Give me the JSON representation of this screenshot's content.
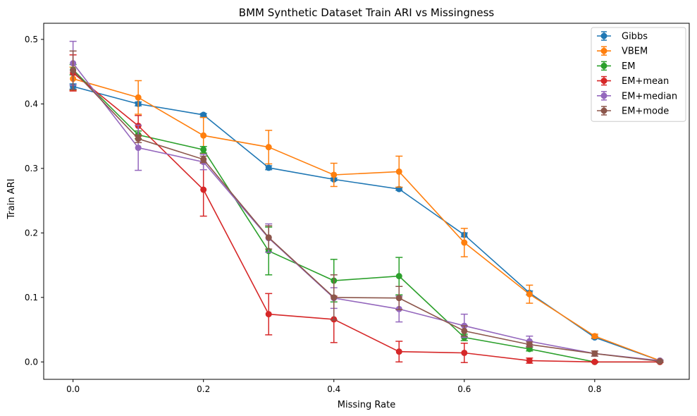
{
  "chart_data": {
    "type": "line",
    "title": "BMM Synthetic Dataset Train ARI vs Missingness",
    "xlabel": "Missing Rate",
    "ylabel": "Train ARI",
    "xlim": [
      -0.045,
      0.945
    ],
    "ylim": [
      -0.027,
      0.525
    ],
    "xticks": [
      0.0,
      0.2,
      0.4,
      0.6,
      0.8
    ],
    "xtick_labels": [
      "0.0",
      "0.2",
      "0.4",
      "0.6",
      "0.8"
    ],
    "yticks": [
      0.0,
      0.1,
      0.2,
      0.3,
      0.4,
      0.5
    ],
    "ytick_labels": [
      "0.0",
      "0.1",
      "0.2",
      "0.3",
      "0.4",
      "0.5"
    ],
    "grid": false,
    "legend_position": "top-right",
    "x": [
      0.0,
      0.1,
      0.2,
      0.3,
      0.4,
      0.5,
      0.6,
      0.7,
      0.8,
      0.9
    ],
    "series": [
      {
        "name": "Gibbs",
        "color": "#1f77b4",
        "values": [
          0.427,
          0.4,
          0.383,
          0.301,
          0.283,
          0.268,
          0.197,
          0.107,
          0.038,
          0.002
        ],
        "errors": [
          0.004,
          0.003,
          0.002,
          0.003,
          0.002,
          0.002,
          0.003,
          0.003,
          0.002,
          0.001
        ]
      },
      {
        "name": "VBEM",
        "color": "#ff7f0e",
        "values": [
          0.439,
          0.41,
          0.351,
          0.333,
          0.29,
          0.295,
          0.185,
          0.105,
          0.04,
          0.002
        ],
        "errors": [
          0.018,
          0.026,
          0.028,
          0.026,
          0.018,
          0.024,
          0.022,
          0.014,
          0.003,
          0.001
        ]
      },
      {
        "name": "EM",
        "color": "#2ca02c",
        "values": [
          0.453,
          0.352,
          0.329,
          0.172,
          0.126,
          0.133,
          0.038,
          0.02,
          0.0,
          0.0
        ],
        "errors": [
          0.008,
          0.006,
          0.005,
          0.037,
          0.033,
          0.029,
          0.005,
          0.003,
          0.001,
          0.001
        ]
      },
      {
        "name": "EM+mean",
        "color": "#d62728",
        "values": [
          0.448,
          0.366,
          0.267,
          0.074,
          0.066,
          0.016,
          0.014,
          0.002,
          0.0,
          0.0
        ],
        "errors": [
          0.028,
          0.016,
          0.041,
          0.032,
          0.036,
          0.016,
          0.015,
          0.004,
          0.001,
          0.001
        ]
      },
      {
        "name": "EM+median",
        "color": "#9467bd",
        "values": [
          0.463,
          0.332,
          0.31,
          0.192,
          0.099,
          0.082,
          0.056,
          0.032,
          0.013,
          0.002
        ],
        "errors": [
          0.034,
          0.035,
          0.012,
          0.022,
          0.016,
          0.02,
          0.018,
          0.008,
          0.004,
          0.001
        ]
      },
      {
        "name": "EM+mode",
        "color": "#8c564b",
        "values": [
          0.452,
          0.346,
          0.314,
          0.193,
          0.1,
          0.099,
          0.048,
          0.027,
          0.013,
          0.001
        ],
        "errors": [
          0.03,
          0.006,
          0.005,
          0.018,
          0.035,
          0.018,
          0.008,
          0.004,
          0.004,
          0.001
        ]
      }
    ]
  }
}
